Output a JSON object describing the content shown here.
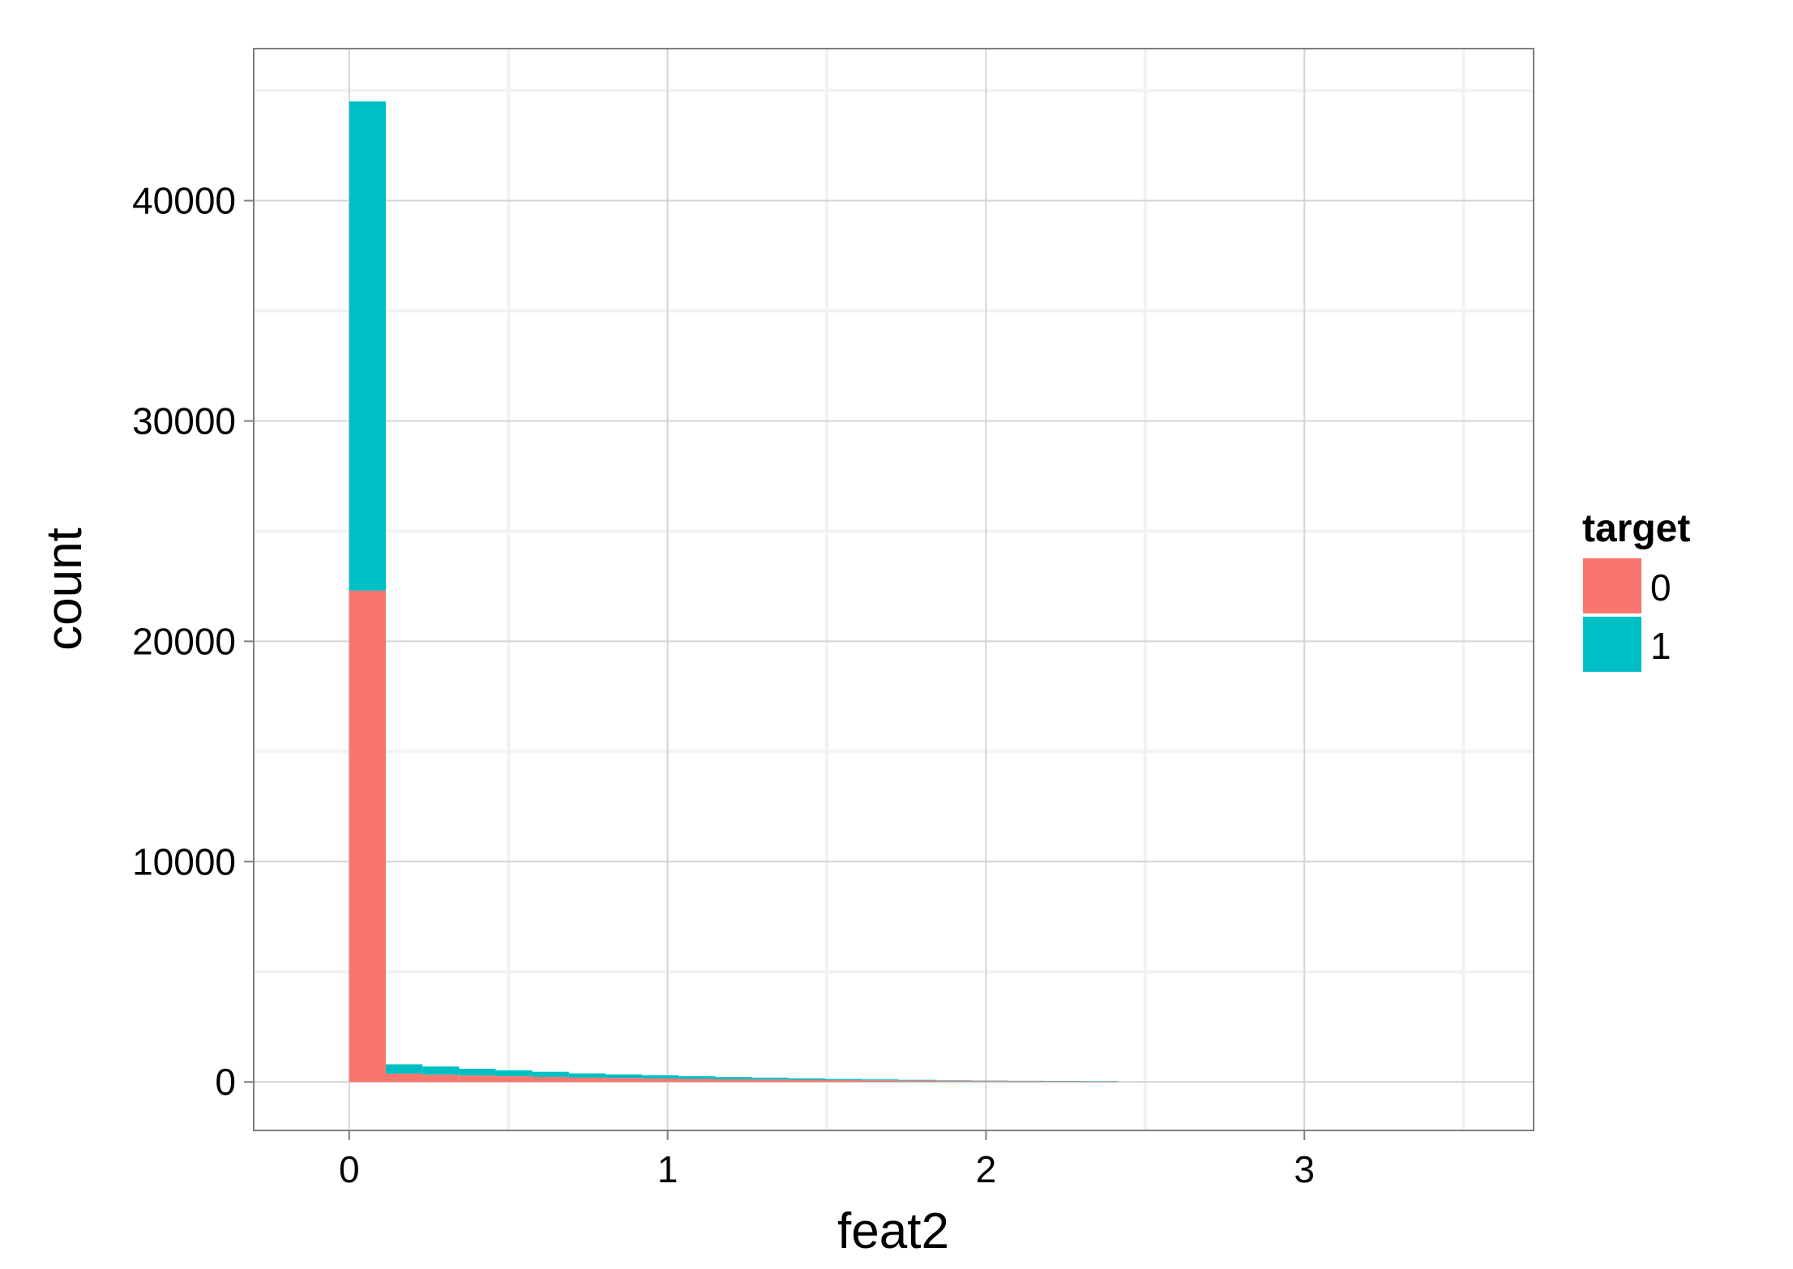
{
  "chart_data": {
    "type": "bar",
    "style": "stacked-histogram",
    "xlabel": "feat2",
    "ylabel": "count",
    "xlim": [
      -0.3,
      3.72
    ],
    "ylim": [
      -2200,
      46900
    ],
    "x_ticks": [
      0,
      1,
      2,
      3
    ],
    "x_tick_labels": [
      "0",
      "1",
      "2",
      "3"
    ],
    "y_ticks": [
      0,
      10000,
      20000,
      30000,
      40000
    ],
    "y_tick_labels": [
      "0",
      "10000",
      "20000",
      "30000",
      "40000"
    ],
    "grid": true,
    "legend": {
      "title": "target",
      "position": "right"
    },
    "bin_width": 0.115,
    "bin_starts": [
      0.0,
      0.115,
      0.23,
      0.345,
      0.46,
      0.575,
      0.69,
      0.805,
      0.92,
      1.035,
      1.15,
      1.265,
      1.38,
      1.495,
      1.61,
      1.725,
      1.84,
      1.955,
      2.07,
      2.185,
      2.3
    ],
    "series": [
      {
        "name": "0",
        "color": "#F8766D",
        "values": [
          22300,
          380,
          330,
          290,
          260,
          230,
          200,
          180,
          160,
          140,
          120,
          110,
          95,
          80,
          70,
          60,
          50,
          40,
          35,
          30,
          25
        ]
      },
      {
        "name": "1",
        "color": "#00BFC4",
        "values": [
          22200,
          420,
          370,
          310,
          270,
          230,
          190,
          160,
          140,
          120,
          100,
          85,
          70,
          55,
          45,
          35,
          25,
          20,
          15,
          10,
          8
        ]
      }
    ]
  }
}
